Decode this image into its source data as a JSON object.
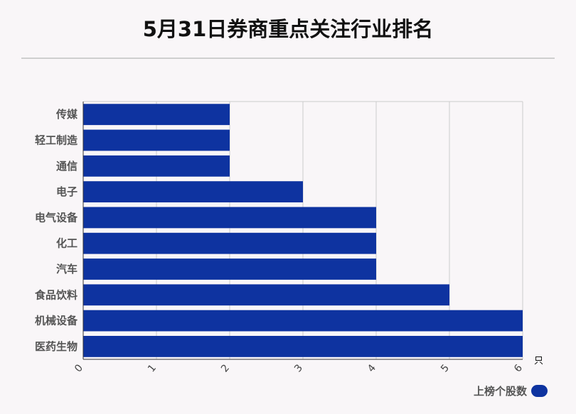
{
  "title": "5月31日券商重点关注行业排名",
  "chart_data": {
    "type": "bar",
    "orientation": "horizontal",
    "title": "5月31日券商重点关注行业排名",
    "categories": [
      "传媒",
      "轻工制造",
      "通信",
      "电子",
      "电气设备",
      "化工",
      "汽车",
      "食品饮料",
      "机械设备",
      "医药生物"
    ],
    "series": [
      {
        "name": "上榜个股数",
        "values": [
          2,
          2,
          2,
          3,
          4,
          4,
          4,
          5,
          6,
          6
        ]
      }
    ],
    "xlim": [
      0,
      6
    ],
    "x_ticks": [
      "0",
      "1",
      "2",
      "3",
      "4",
      "5",
      "6"
    ],
    "x_unit": "只",
    "grid": true,
    "legend_position": "bottom-right",
    "bar_color": "#0e33a0"
  },
  "legend": {
    "label": "上榜个股数",
    "color": "#0e33a0"
  }
}
